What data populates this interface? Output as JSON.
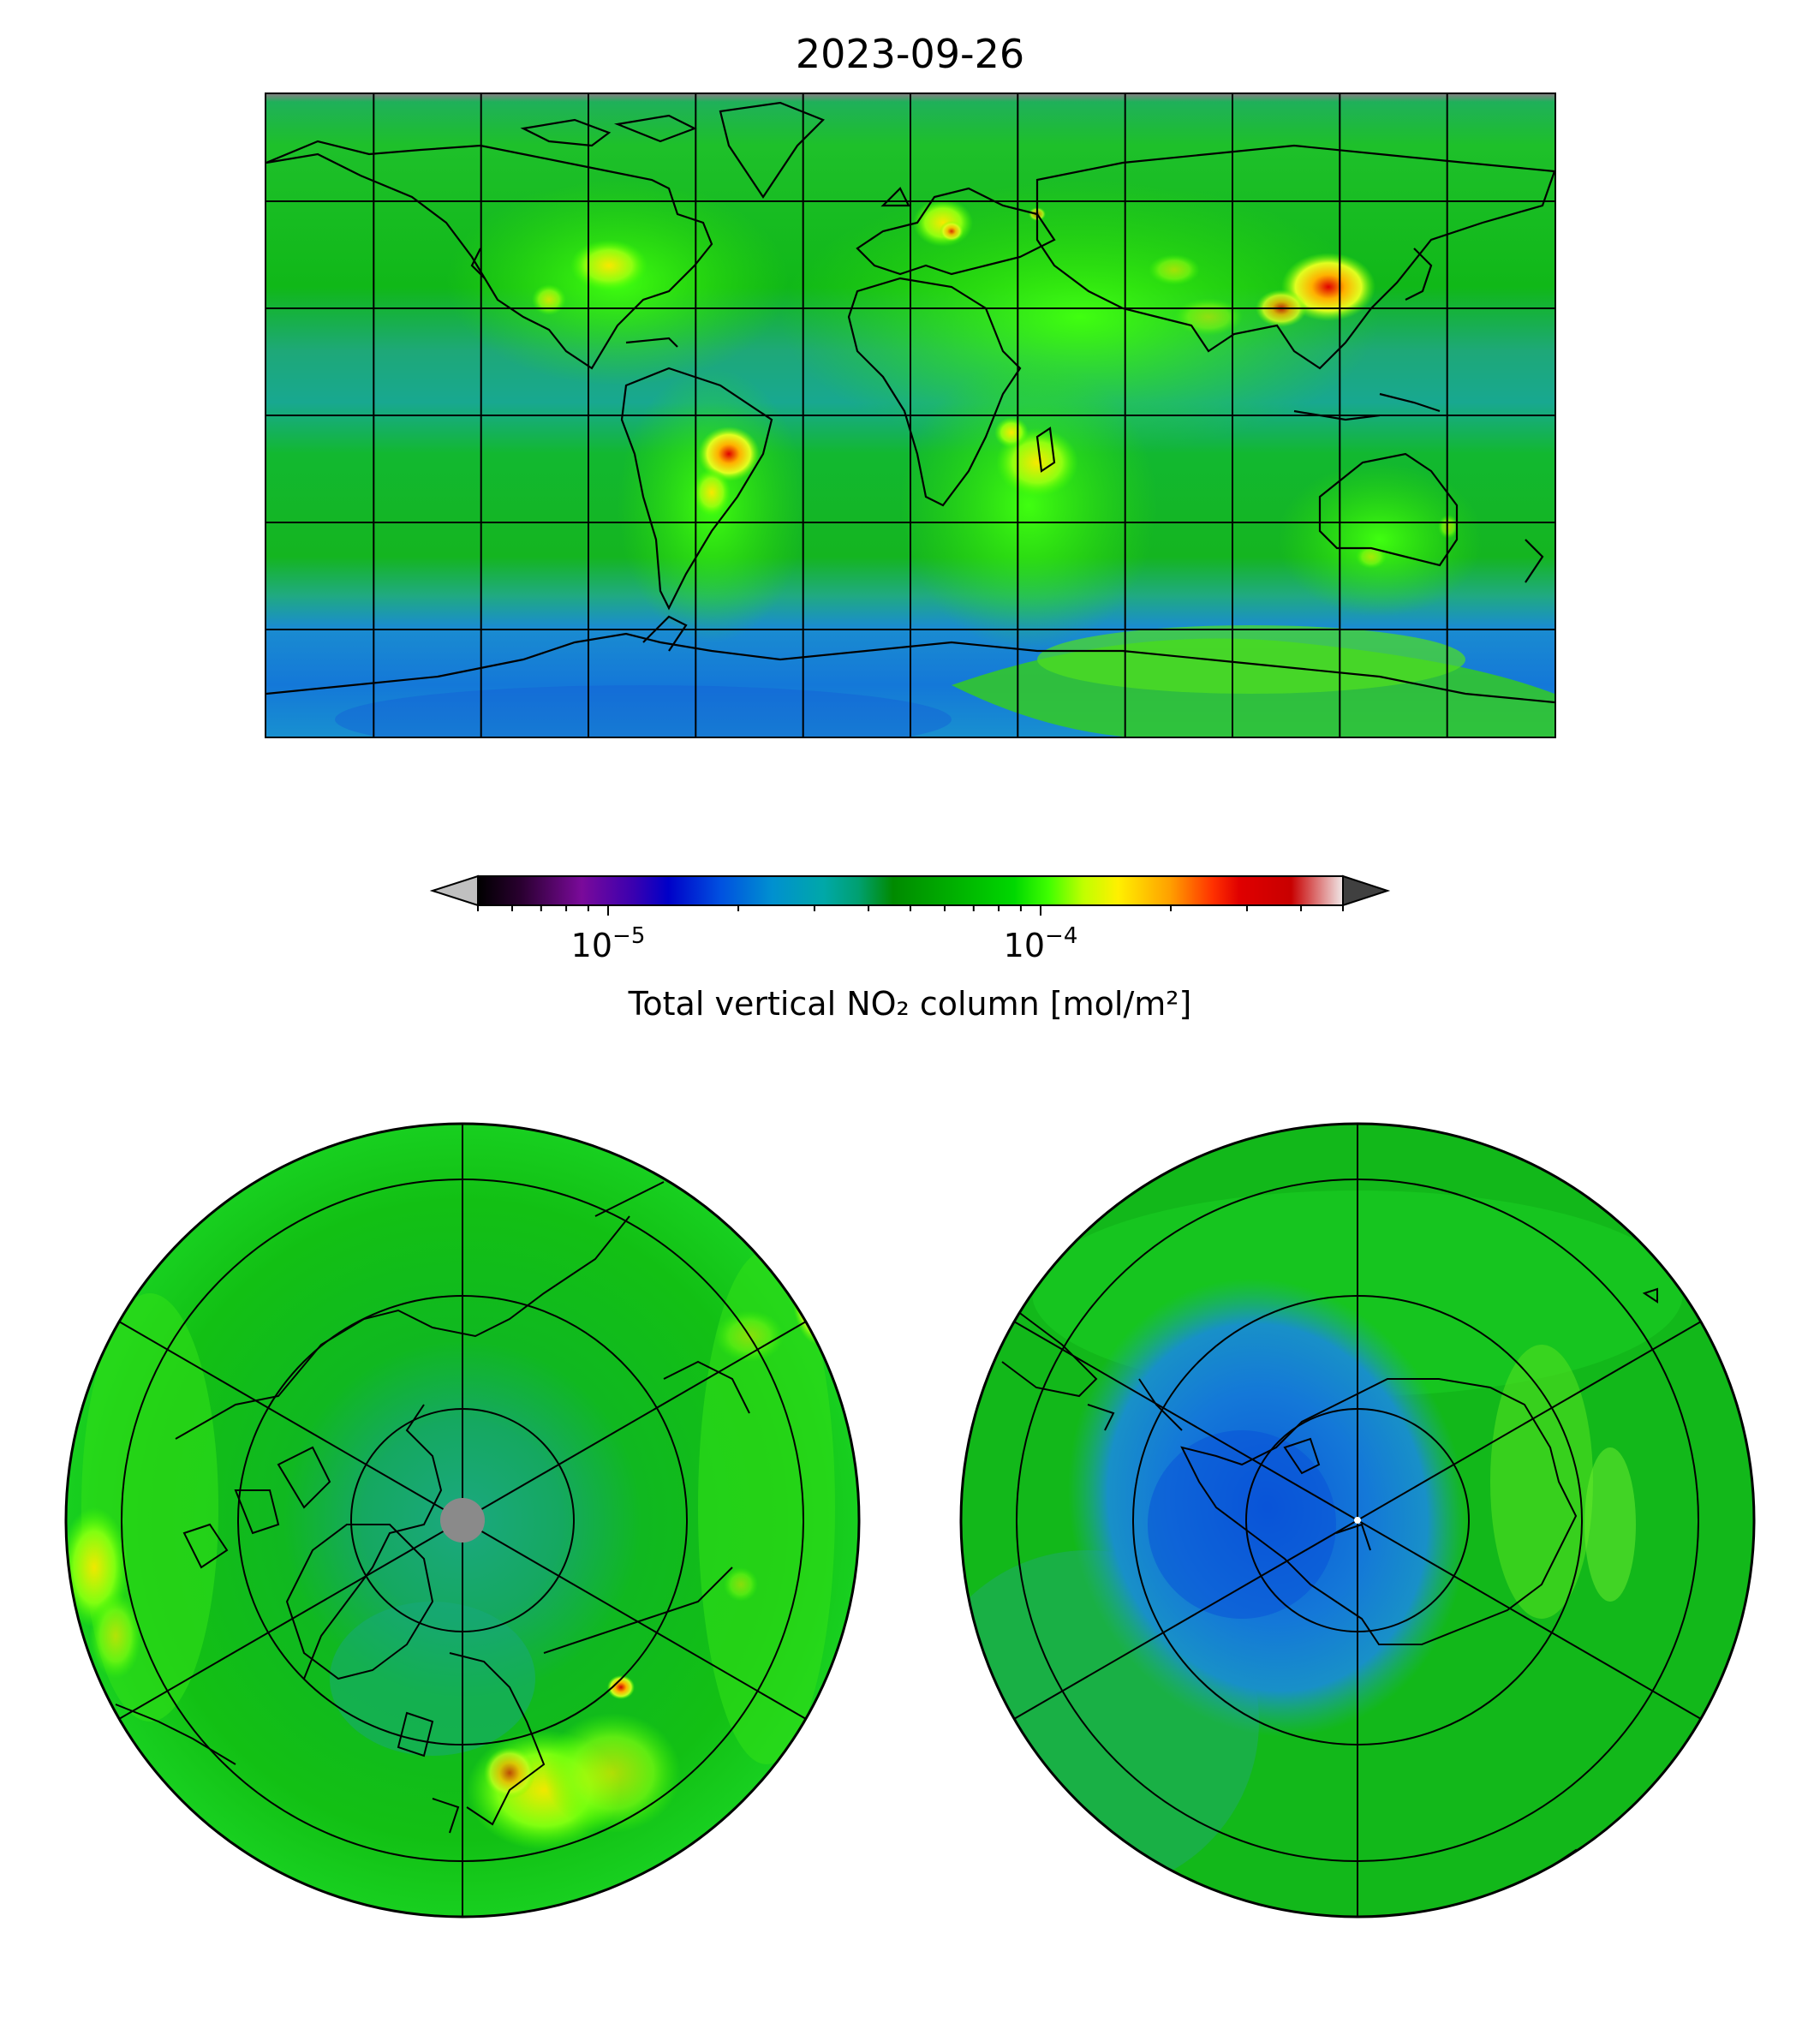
{
  "title": "2023-09-26",
  "colorbar": {
    "label": "Total vertical NO₂ column [mol/m²]",
    "scale": "log",
    "range": [
      5e-06,
      0.0005
    ],
    "major_ticks": [
      {
        "value": 1e-05,
        "label_base": "10",
        "label_exp": "−5"
      },
      {
        "value": 0.0001,
        "label_base": "10",
        "label_exp": "−4"
      }
    ],
    "colors": [
      "#000000",
      "#2a0030",
      "#7a0a9a",
      "#3a00b0",
      "#0000c8",
      "#0050e0",
      "#0090d0",
      "#00a8a8",
      "#00a070",
      "#008a00",
      "#00b000",
      "#00d800",
      "#40ff00",
      "#c0ff00",
      "#fff000",
      "#ffa000",
      "#ff3000",
      "#e00000",
      "#c80000",
      "#e0c0c0"
    ],
    "extend": "both",
    "under_color": "#c0c0c0",
    "over_color": "#404040"
  },
  "maps": {
    "global": {
      "projection": "plate-carree"
    },
    "north": {
      "projection": "north-polar-stereographic"
    },
    "south": {
      "projection": "south-polar-stereographic"
    }
  }
}
